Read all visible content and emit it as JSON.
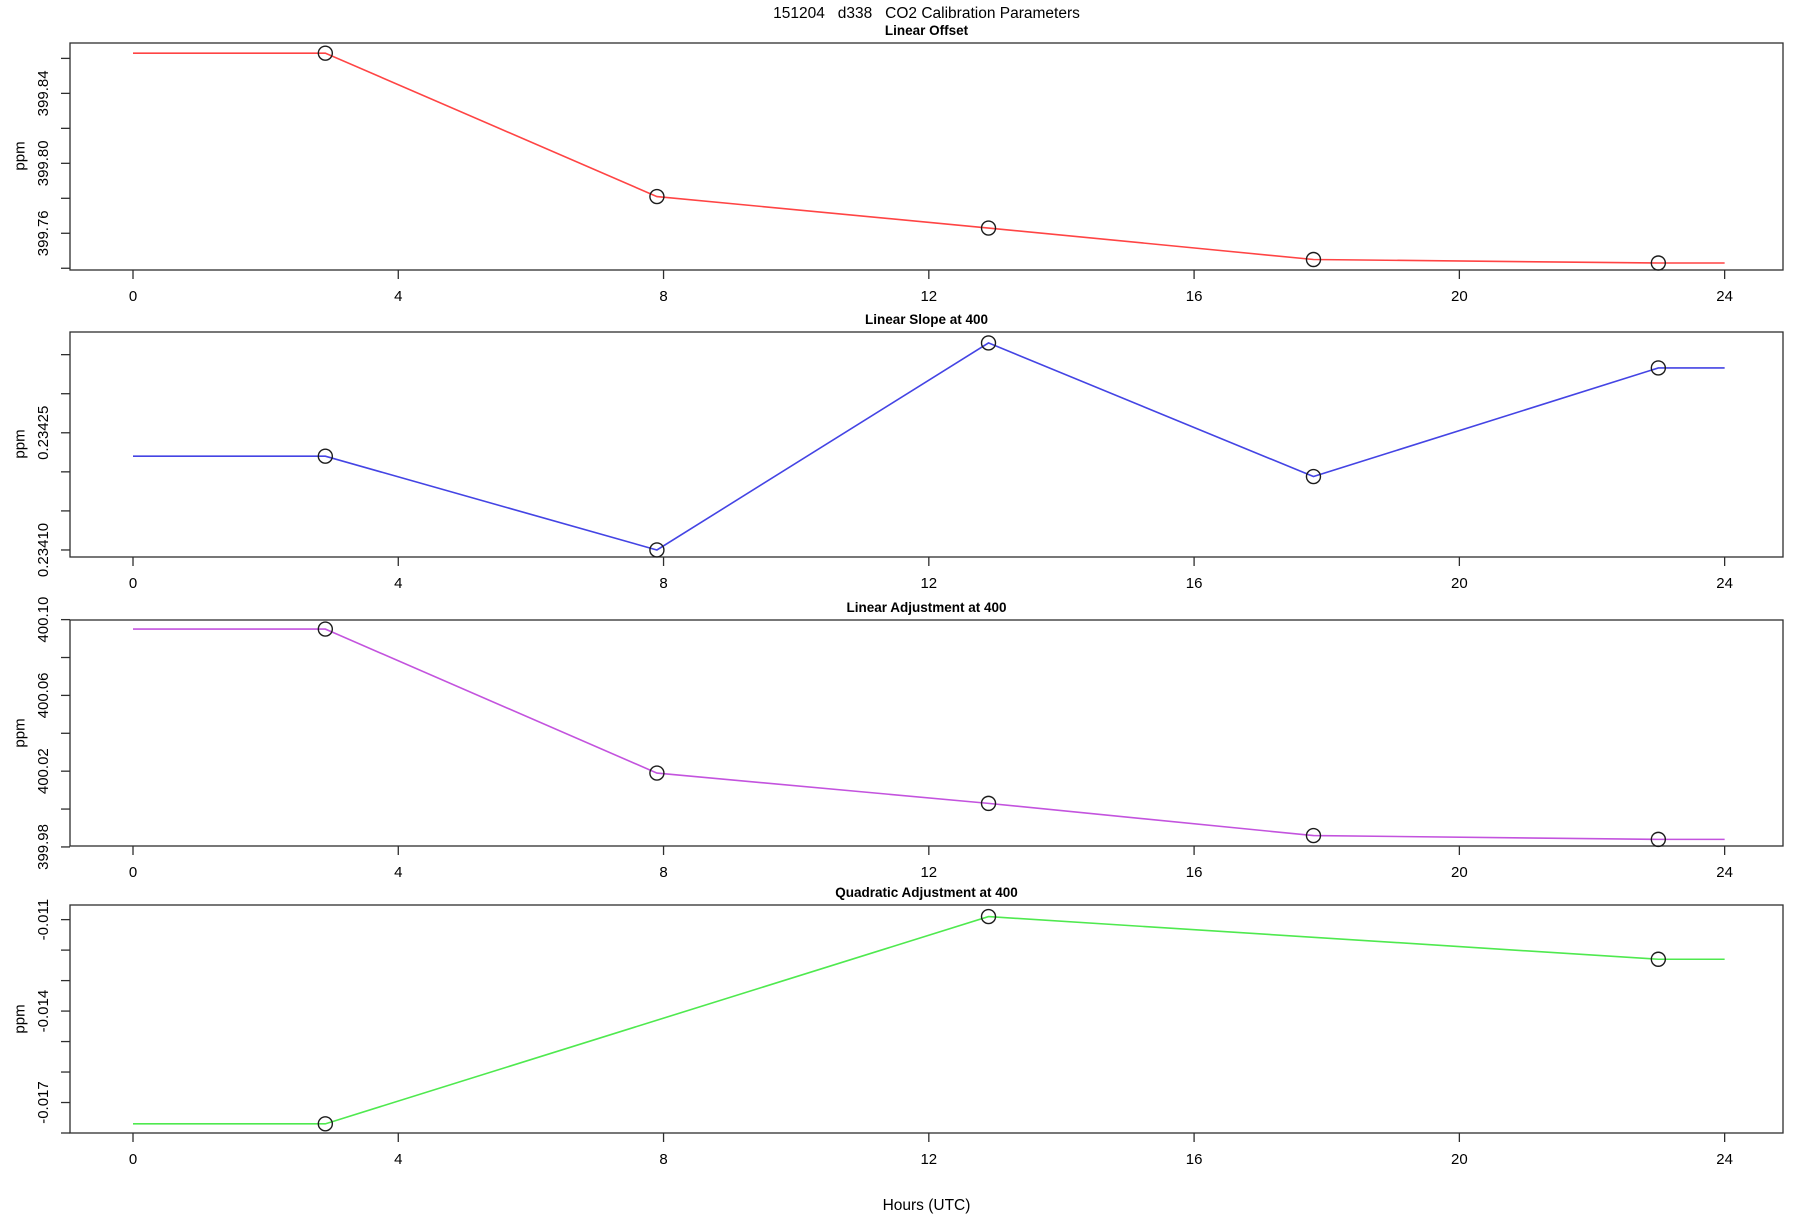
{
  "page_title": "151204   d338   CO2 Calibration Parameters",
  "xlabel": "Hours (UTC)",
  "chart_data": [
    {
      "type": "line",
      "title": "Linear Offset",
      "ylabel": "ppm",
      "color": "#ff4444",
      "marker": "open-circle",
      "x": [
        2.9,
        7.9,
        12.9,
        17.8,
        23.0
      ],
      "y": [
        399.863,
        399.781,
        399.763,
        399.745,
        399.743
      ],
      "line_x_range": [
        0,
        24
      ],
      "xticks": [
        0,
        4,
        8,
        12,
        16,
        20,
        24
      ],
      "xlim": [
        -0.95,
        24.88
      ],
      "ylim": [
        399.739,
        399.8688
      ],
      "yticks": [
        399.74,
        399.76,
        399.78,
        399.8,
        399.82,
        399.84,
        399.86
      ],
      "ytick_labels": [
        "",
        "399.76",
        "",
        "399.80",
        "",
        "399.84",
        ""
      ],
      "grid": "off",
      "legend": "none"
    },
    {
      "type": "line",
      "title": "Linear Slope at 400",
      "ylabel": "ppm",
      "color": "#4444e4",
      "marker": "open-circle",
      "x": [
        2.9,
        7.9,
        12.9,
        17.8,
        23.0
      ],
      "y": [
        0.23422,
        0.2341,
        0.234365,
        0.234194,
        0.234333
      ],
      "line_x_range": [
        0,
        24
      ],
      "xticks": [
        0,
        4,
        8,
        12,
        16,
        20,
        24
      ],
      "xlim": [
        -0.95,
        24.88
      ],
      "ylim": [
        0.234091,
        0.234379
      ],
      "yticks": [
        0.2341,
        0.23415,
        0.2342,
        0.23425,
        0.2343,
        0.23435
      ],
      "ytick_labels": [
        "0.23410",
        "",
        "",
        "0.23425",
        "",
        ""
      ],
      "grid": "off",
      "legend": "none"
    },
    {
      "type": "line",
      "title": "Linear Adjustment at 400",
      "ylabel": "ppm",
      "color": "#c353de",
      "marker": "open-circle",
      "x": [
        2.9,
        7.9,
        12.9,
        17.8,
        23.0
      ],
      "y": [
        400.095,
        400.019,
        400.003,
        399.986,
        399.984
      ],
      "line_x_range": [
        0,
        24
      ],
      "xticks": [
        0,
        4,
        8,
        12,
        16,
        20,
        24
      ],
      "xlim": [
        -0.95,
        24.88
      ],
      "ylim": [
        399.9805,
        400.0998
      ],
      "yticks": [
        399.98,
        400.0,
        400.02,
        400.04,
        400.06,
        400.08,
        400.1
      ],
      "ytick_labels": [
        "399.98",
        "",
        "400.02",
        "",
        "400.06",
        "",
        "400.10"
      ],
      "grid": "off",
      "legend": "none"
    },
    {
      "type": "line",
      "title": "Quadratic Adjustment at 400",
      "ylabel": "ppm",
      "color": "#4fe94f",
      "marker": "open-circle",
      "x": [
        2.9,
        12.9,
        23.0
      ],
      "y": [
        -0.0177,
        -0.0109,
        -0.0123
      ],
      "line_x_range": [
        0,
        24
      ],
      "xticks": [
        0,
        4,
        8,
        12,
        16,
        20,
        24
      ],
      "xlim": [
        -0.95,
        24.88
      ],
      "ylim": [
        -0.018,
        -0.01052
      ],
      "yticks": [
        -0.018,
        -0.017,
        -0.016,
        -0.015,
        -0.014,
        -0.013,
        -0.012,
        -0.011
      ],
      "ytick_labels": [
        "",
        "-0.017",
        "",
        "",
        "-0.014",
        "",
        "",
        "-0.011"
      ],
      "grid": "off",
      "legend": "none"
    }
  ]
}
